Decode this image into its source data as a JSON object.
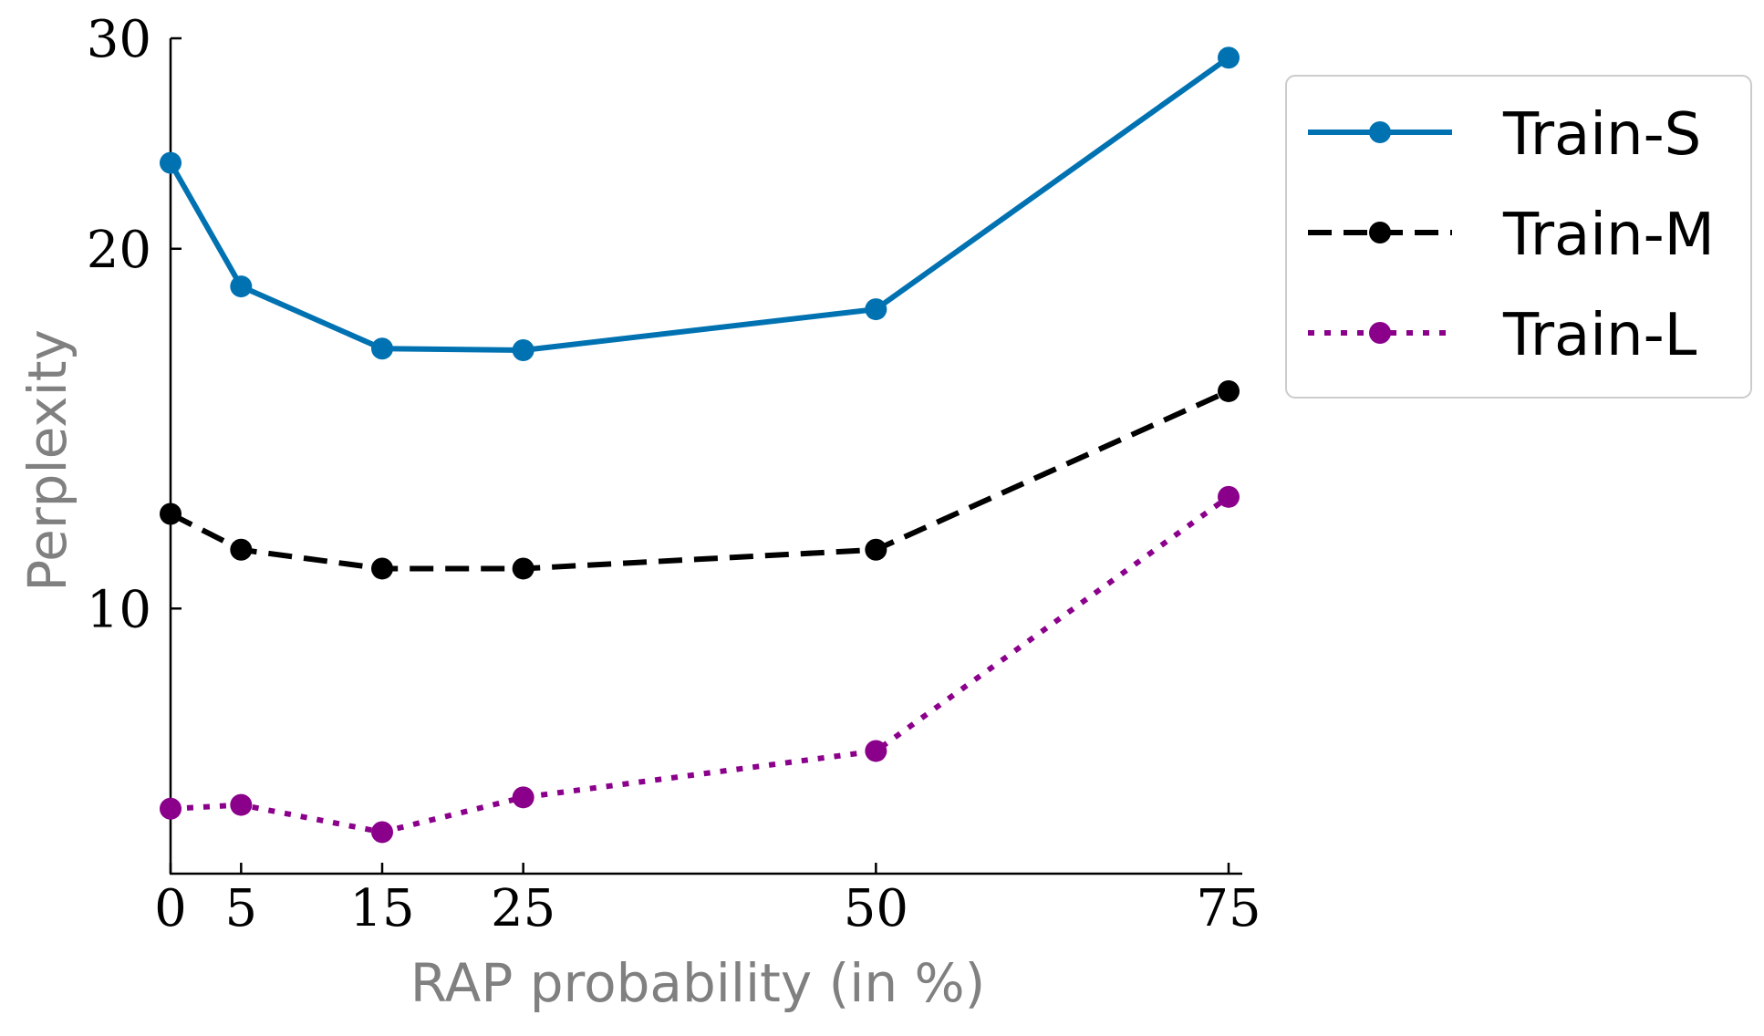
{
  "chart_data": {
    "type": "line",
    "xlabel": "RAP probability (in %)",
    "ylabel": "Perplexity",
    "x": [
      0,
      5,
      15,
      25,
      50,
      75
    ],
    "xticks": [
      "0",
      "5",
      "15",
      "25",
      "50",
      "75"
    ],
    "yticks": [
      "10",
      "20",
      "30"
    ],
    "yscale": "log",
    "xlim": [
      0,
      75
    ],
    "ylim": [
      6.0,
      30.0
    ],
    "grid": false,
    "legend_position": "upper-right-outside",
    "series": [
      {
        "name": "Train-S",
        "color": "#0072B2",
        "linestyle": "solid",
        "values": [
          23.6,
          18.6,
          16.5,
          16.45,
          17.8,
          28.9
        ]
      },
      {
        "name": "Train-M",
        "color": "#000000",
        "linestyle": "dashed",
        "values": [
          12.0,
          11.2,
          10.8,
          10.8,
          11.2,
          15.2
        ]
      },
      {
        "name": "Train-L",
        "color": "#8B008B",
        "linestyle": "dotted",
        "values": [
          6.8,
          6.85,
          6.5,
          6.95,
          7.6,
          12.4
        ]
      }
    ]
  }
}
